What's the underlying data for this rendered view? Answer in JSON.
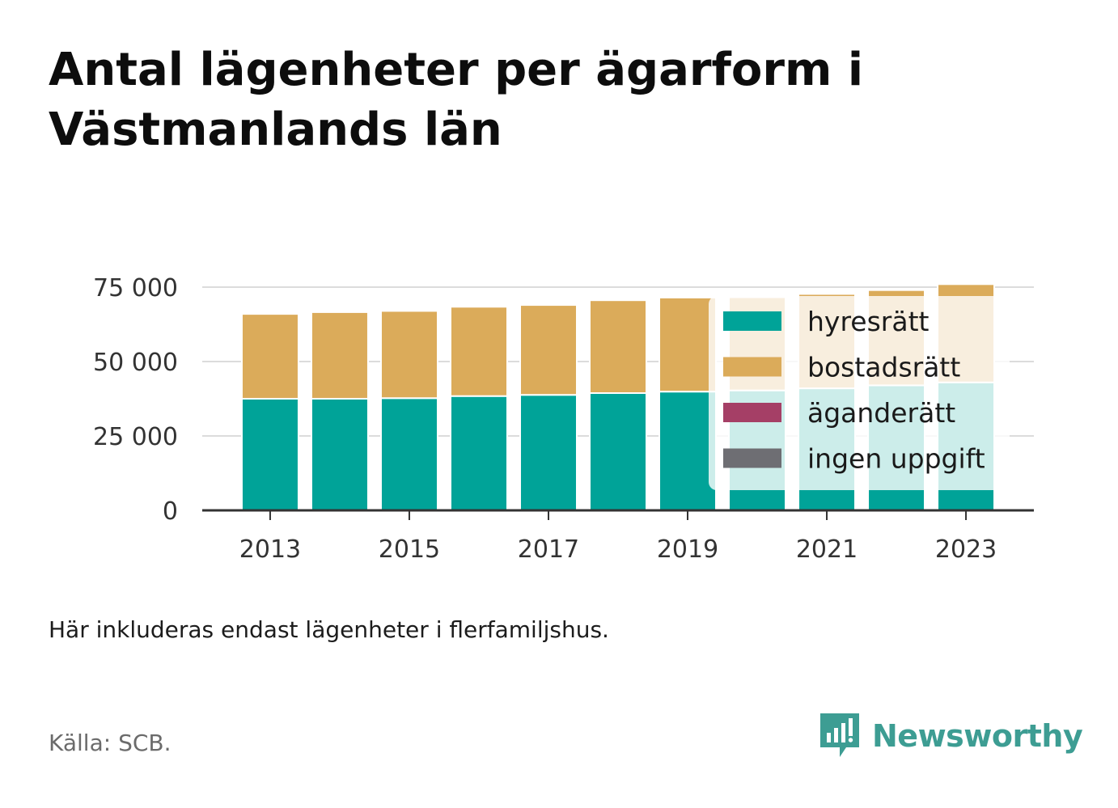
{
  "title": "Antal lägenheter per ägarform i Västmanlands län",
  "note": "Här inkluderas endast lägenheter i flerfamiljshus.",
  "source": "Källa: SCB.",
  "brand": {
    "name": "Newsworthy",
    "icon": "newsworthy-logo-icon",
    "color": "#3d9d93"
  },
  "chart_data": {
    "type": "bar",
    "stacked": true,
    "title": "Antal lägenheter per ägarform i Västmanlands län",
    "xlabel": "",
    "ylabel": "",
    "categories": [
      "2013",
      "2014",
      "2015",
      "2016",
      "2017",
      "2018",
      "2019",
      "2020",
      "2021",
      "2022",
      "2023"
    ],
    "x_tick_labels": [
      "2013",
      "2015",
      "2017",
      "2019",
      "2021",
      "2023"
    ],
    "y_tick_labels": [
      "0",
      "25 000",
      "50 000",
      "75 000"
    ],
    "y_ticks": [
      0,
      25000,
      50000,
      75000
    ],
    "ylim": [
      0,
      75000
    ],
    "grid": true,
    "legend_position": "right",
    "series": [
      {
        "name": "hyresrätt",
        "color": "#00a398",
        "values": [
          37500,
          37500,
          37700,
          38400,
          38800,
          39400,
          39900,
          40300,
          41000,
          42000,
          43000
        ]
      },
      {
        "name": "bostadsrätt",
        "color": "#dbab5a",
        "values": [
          28500,
          29100,
          29300,
          30000,
          30200,
          31200,
          31600,
          31300,
          31700,
          32000,
          33000
        ]
      },
      {
        "name": "äganderätt",
        "color": "#a53f66",
        "values": [
          0,
          0,
          0,
          0,
          0,
          0,
          0,
          0,
          0,
          0,
          0
        ]
      },
      {
        "name": "ingen uppgift",
        "color": "#6e6e73",
        "values": [
          0,
          0,
          0,
          0,
          0,
          0,
          0,
          0,
          0,
          0,
          0
        ]
      }
    ]
  }
}
